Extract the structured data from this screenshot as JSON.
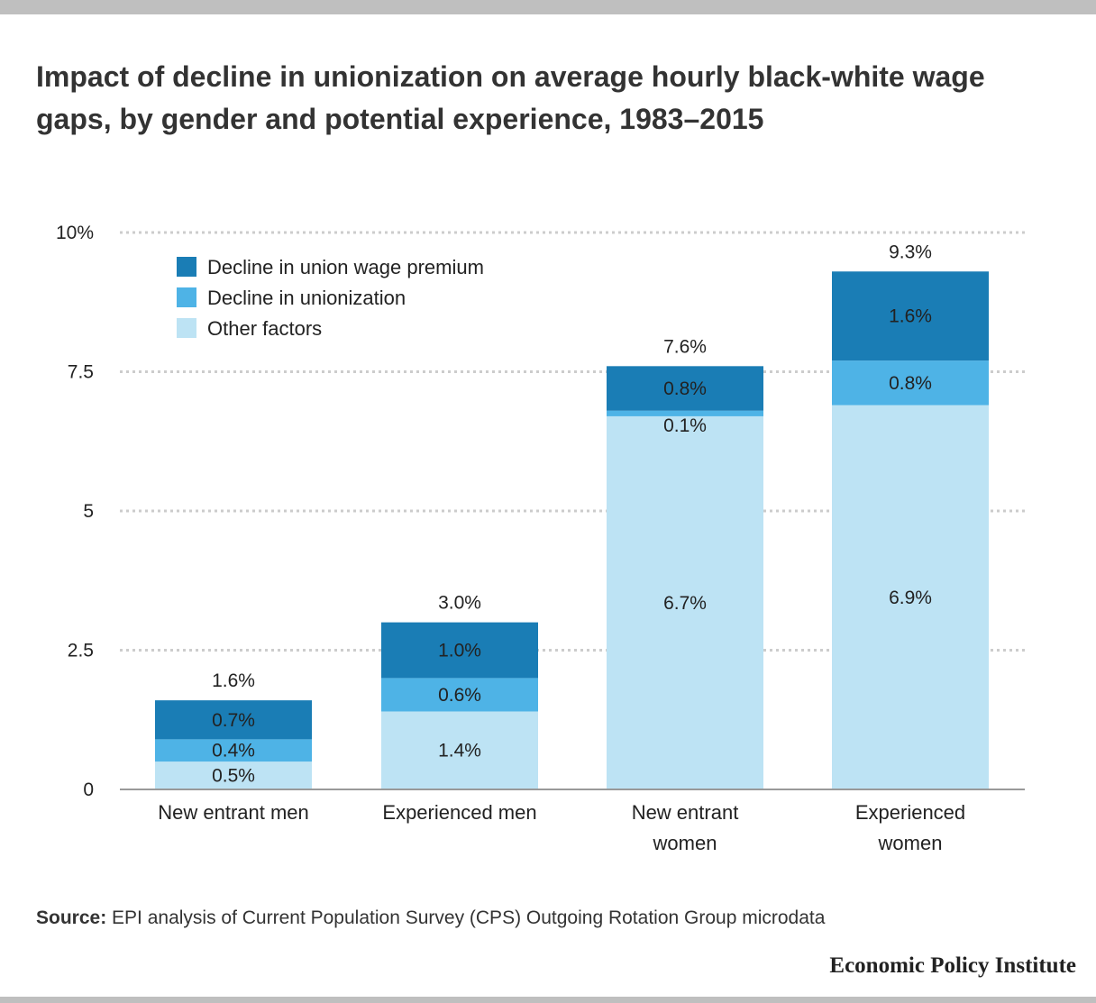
{
  "title": "Impact of decline in unionization on average hourly black-white wage gaps, by gender and potential experience, 1983–2015",
  "source_label": "Source:",
  "source_text": "EPI analysis of Current Population Survey (CPS) Outgoing Rotation Group microdata",
  "brand": "Economic Policy Institute",
  "chart_data": {
    "type": "bar",
    "stacked": true,
    "categories": [
      [
        "New entrant men"
      ],
      [
        "Experienced men"
      ],
      [
        "New entrant",
        "women"
      ],
      [
        "Experienced",
        "women"
      ]
    ],
    "series": [
      {
        "name": "Other factors",
        "values": [
          0.5,
          1.4,
          6.7,
          6.9
        ],
        "labels": [
          "0.5%",
          "1.4%",
          "6.7%",
          "6.9%"
        ],
        "color": "#bde3f4"
      },
      {
        "name": "Decline in unionization",
        "values": [
          0.4,
          0.6,
          0.1,
          0.8
        ],
        "labels": [
          "0.4%",
          "0.6%",
          "0.1%",
          "0.8%"
        ],
        "color": "#4eb3e6"
      },
      {
        "name": "Decline in union wage premium",
        "values": [
          0.7,
          1.0,
          0.8,
          1.6
        ],
        "labels": [
          "0.7%",
          "1.0%",
          "0.8%",
          "1.6%"
        ],
        "color": "#1a7db5"
      }
    ],
    "totals": [
      1.6,
      3.0,
      7.6,
      9.3
    ],
    "total_labels": [
      "1.6%",
      "3.0%",
      "7.6%",
      "9.3%"
    ],
    "ylim": [
      0,
      10
    ],
    "yticks": [
      0,
      2.5,
      5,
      7.5,
      10
    ],
    "ytick_labels": [
      "0",
      "2.5",
      "5",
      "7.5",
      "10%"
    ],
    "legend_order": [
      "Decline in union wage premium",
      "Decline in unionization",
      "Other factors"
    ],
    "legend_position": "top-left",
    "grid": true
  }
}
